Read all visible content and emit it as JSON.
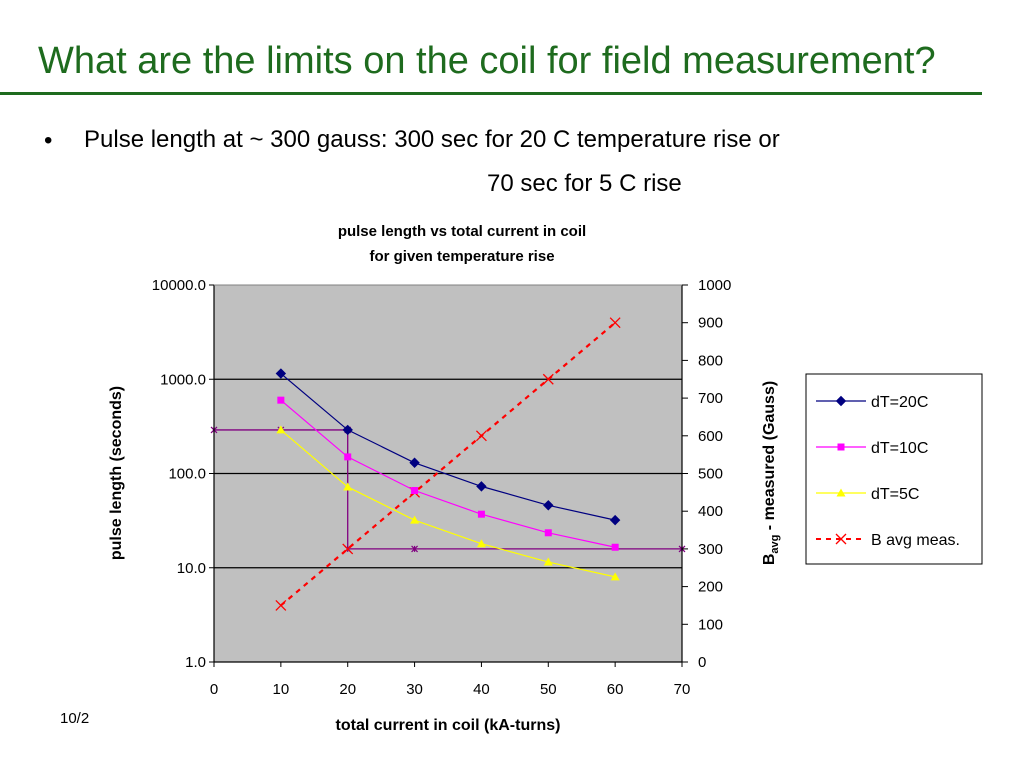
{
  "slide": {
    "title": "What are the limits on the coil for field measurement?",
    "bullet_marker": "•",
    "bullet_line1": "Pulse length at ~ 300 gauss:   300 sec for 20 C temperature rise or",
    "bullet_line2": "70 sec for 5 C rise",
    "footer_date": "10/2"
  },
  "colors": {
    "title_green": "#1e6b1e",
    "plot_background": "#c0c0c0",
    "dT20": "#000080",
    "dT10": "#ff00ff",
    "dT5": "#ffff00",
    "b_avg": "#ff0000",
    "guide": "#800080"
  },
  "chart_data": {
    "type": "line",
    "title": [
      "pulse length vs total current in coil",
      "for given temperature rise"
    ],
    "xlabel": "total current in coil (kA-turns)",
    "ylabel_left": "pulse length (seconds)",
    "ylabel_right": {
      "main": "B",
      "sub": "avg",
      "rest": "  - measured (Gauss)"
    },
    "xlim": [
      0,
      70
    ],
    "x_ticks": [
      "0",
      "10",
      "20",
      "30",
      "40",
      "50",
      "60",
      "70"
    ],
    "y_left_scale": "log",
    "y_left_lim": [
      1,
      10000
    ],
    "y_left_ticks": [
      "1.0",
      "10.0",
      "100.0",
      "1000.0",
      "10000.0"
    ],
    "y_right_lim": [
      0,
      1000
    ],
    "y_right_ticks": [
      "0",
      "100",
      "200",
      "300",
      "400",
      "500",
      "600",
      "700",
      "800",
      "900",
      "1000"
    ],
    "grid": "horizontal major lines on left log axis",
    "legend_position": "right",
    "series": [
      {
        "name": "dT=20C",
        "axis": "left",
        "marker": "diamond",
        "color": "#000080",
        "x": [
          10,
          20,
          30,
          40,
          50,
          60
        ],
        "y": [
          1150,
          290,
          130,
          73,
          46,
          32
        ]
      },
      {
        "name": "dT=10C",
        "axis": "left",
        "marker": "square",
        "color": "#ff00ff",
        "x": [
          10,
          20,
          30,
          40,
          50,
          60
        ],
        "y": [
          600,
          150,
          66,
          37,
          23.5,
          16.5
        ]
      },
      {
        "name": "dT=5C",
        "axis": "left",
        "marker": "triangle",
        "color": "#ffff00",
        "x": [
          10,
          20,
          30,
          40,
          50,
          60
        ],
        "y": [
          290,
          72,
          32,
          18,
          11.5,
          8
        ]
      },
      {
        "name": "B avg meas.",
        "axis": "right",
        "marker": "x",
        "dashed": true,
        "color": "#ff0000",
        "x": [
          10,
          20,
          30,
          40,
          50,
          60
        ],
        "y": [
          150,
          300,
          450,
          600,
          750,
          900
        ]
      }
    ],
    "guide_lines": {
      "color": "#800080",
      "horizontal_left_axis": {
        "x": [
          0,
          20
        ],
        "y": 290,
        "marker_x": [
          0,
          10,
          20
        ]
      },
      "vertical": {
        "x": 20,
        "y_from_left": 290,
        "y_to_right": 300
      },
      "horizontal_right_axis": {
        "x": [
          20,
          70
        ],
        "y": 300,
        "marker_x": [
          20,
          30,
          70
        ]
      }
    }
  }
}
